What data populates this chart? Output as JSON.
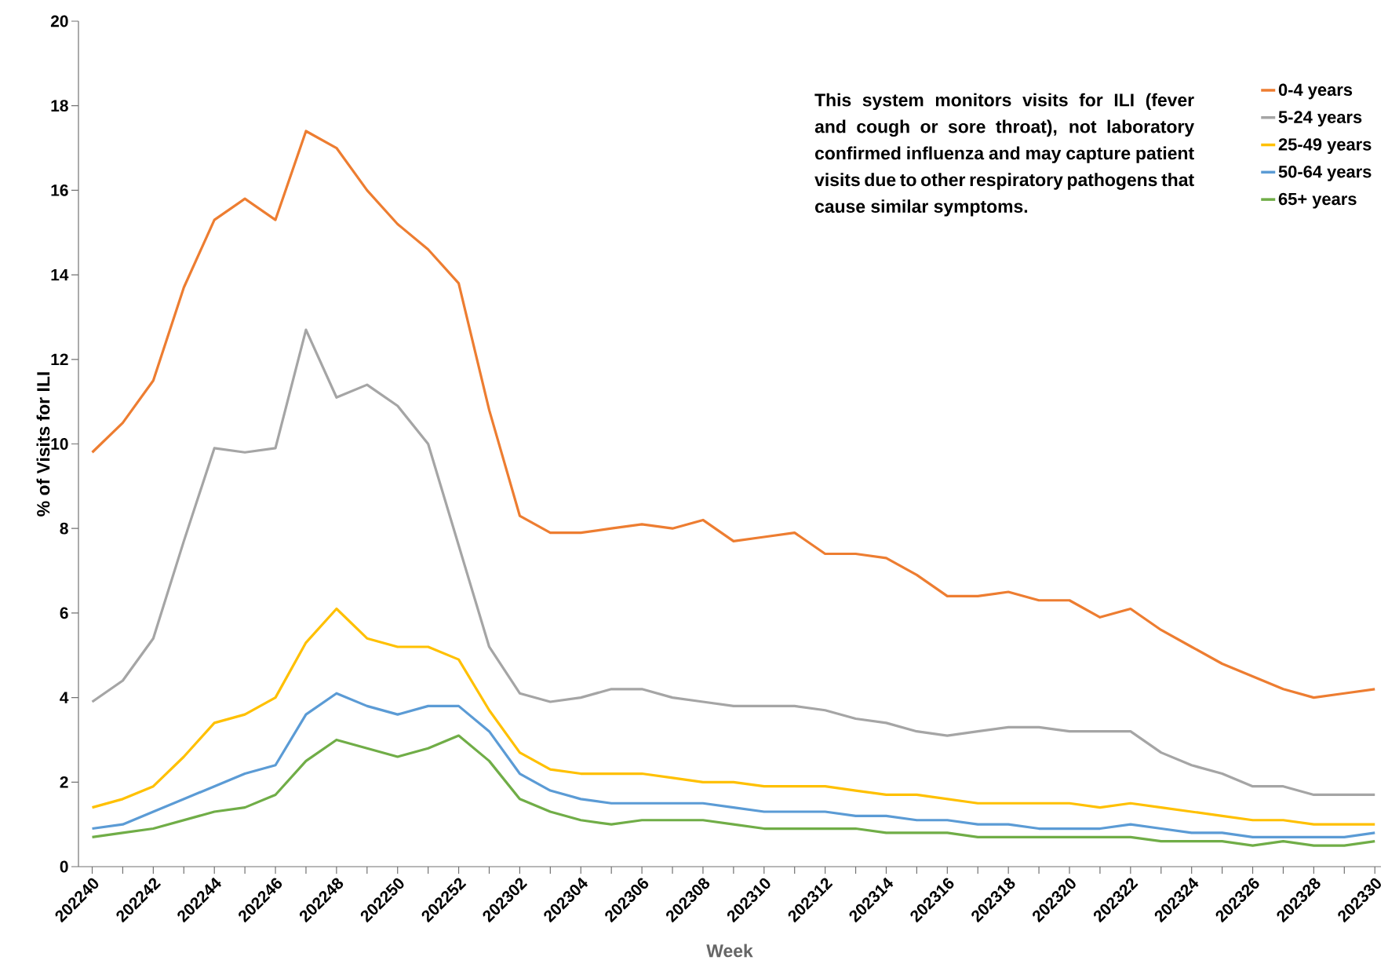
{
  "chart_data": {
    "type": "line",
    "xlabel": "Week",
    "ylabel": "% of Visits for ILI",
    "categories": [
      "202240",
      null,
      "202242",
      null,
      "202244",
      null,
      "202246",
      null,
      "202248",
      null,
      "202250",
      null,
      "202252",
      null,
      "202302",
      null,
      "202304",
      null,
      "202306",
      null,
      "202308",
      null,
      "202310",
      null,
      "202312",
      null,
      "202314",
      null,
      "202316",
      null,
      "202318",
      null,
      "202320",
      null,
      "202322",
      null,
      "202324",
      null,
      "202326",
      null,
      "202328",
      null,
      "202330"
    ],
    "series": [
      {
        "name": "0-4 years",
        "color": "#ed7d31",
        "values": [
          9.8,
          10.5,
          11.5,
          13.7,
          15.3,
          15.8,
          15.3,
          17.4,
          17.0,
          16.0,
          15.2,
          14.6,
          13.8,
          10.8,
          8.3,
          7.9,
          7.9,
          8.0,
          8.1,
          8.0,
          8.2,
          7.7,
          7.8,
          7.9,
          7.4,
          7.4,
          7.3,
          6.9,
          6.4,
          6.4,
          6.5,
          6.3,
          6.3,
          5.9,
          6.1,
          5.6,
          5.2,
          4.8,
          4.5,
          4.2,
          4.0,
          4.1,
          4.2
        ]
      },
      {
        "name": "5-24 years",
        "color": "#a5a5a5",
        "values": [
          3.9,
          4.4,
          5.4,
          7.7,
          9.9,
          9.8,
          9.9,
          12.7,
          11.1,
          11.4,
          10.9,
          10.0,
          7.6,
          5.2,
          4.1,
          3.9,
          4.0,
          4.2,
          4.2,
          4.0,
          3.9,
          3.8,
          3.8,
          3.8,
          3.7,
          3.5,
          3.4,
          3.2,
          3.1,
          3.2,
          3.3,
          3.3,
          3.2,
          3.2,
          3.2,
          2.7,
          2.4,
          2.2,
          1.9,
          1.9,
          1.7,
          1.7,
          1.7
        ]
      },
      {
        "name": "25-49 years",
        "color": "#ffc000",
        "values": [
          1.4,
          1.6,
          1.9,
          2.6,
          3.4,
          3.6,
          4.0,
          5.3,
          6.1,
          5.4,
          5.2,
          5.2,
          4.9,
          3.7,
          2.7,
          2.3,
          2.2,
          2.2,
          2.2,
          2.1,
          2.0,
          2.0,
          1.9,
          1.9,
          1.9,
          1.8,
          1.7,
          1.7,
          1.6,
          1.5,
          1.5,
          1.5,
          1.5,
          1.4,
          1.5,
          1.4,
          1.3,
          1.2,
          1.1,
          1.1,
          1.0,
          1.0,
          1.0
        ]
      },
      {
        "name": "50-64 years",
        "color": "#5b9bd5",
        "values": [
          0.9,
          1.0,
          1.3,
          1.6,
          1.9,
          2.2,
          2.4,
          3.6,
          4.1,
          3.8,
          3.6,
          3.8,
          3.8,
          3.2,
          2.2,
          1.8,
          1.6,
          1.5,
          1.5,
          1.5,
          1.5,
          1.4,
          1.3,
          1.3,
          1.3,
          1.2,
          1.2,
          1.1,
          1.1,
          1.0,
          1.0,
          0.9,
          0.9,
          0.9,
          1.0,
          0.9,
          0.8,
          0.8,
          0.7,
          0.7,
          0.7,
          0.7,
          0.8
        ]
      },
      {
        "name": "65+ years",
        "color": "#70ad47",
        "values": [
          0.7,
          0.8,
          0.9,
          1.1,
          1.3,
          1.4,
          1.7,
          2.5,
          3.0,
          2.8,
          2.6,
          2.8,
          3.1,
          2.5,
          1.6,
          1.3,
          1.1,
          1.0,
          1.1,
          1.1,
          1.1,
          1.0,
          0.9,
          0.9,
          0.9,
          0.9,
          0.8,
          0.8,
          0.8,
          0.7,
          0.7,
          0.7,
          0.7,
          0.7,
          0.7,
          0.6,
          0.6,
          0.6,
          0.5,
          0.6,
          0.5,
          0.5,
          0.6
        ]
      }
    ],
    "ylim": [
      0,
      20
    ],
    "yticks": [
      0,
      2,
      4,
      6,
      8,
      10,
      12,
      14,
      16,
      18,
      20
    ],
    "legend": "top right",
    "annotations": [
      "This system monitors visits for ILI (fever and cough or sore throat), not laboratory confirmed influenza and may capture patient visits due to other respiratory pathogens that cause similar symptoms."
    ]
  }
}
